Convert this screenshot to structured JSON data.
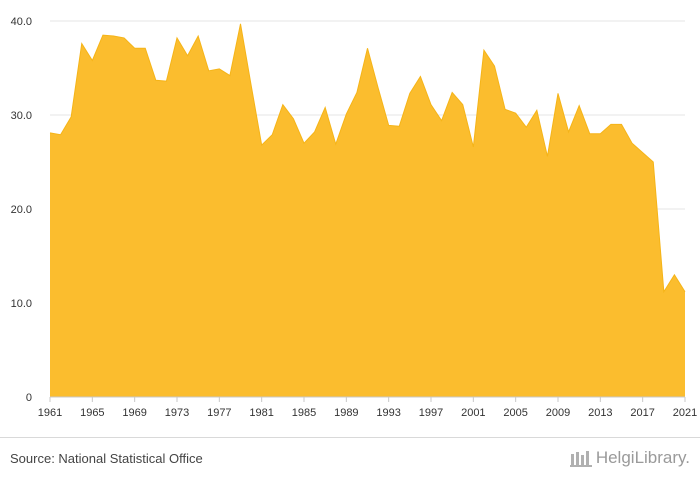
{
  "chart_data": {
    "type": "area",
    "x_start": 1961,
    "x_end": 2021,
    "x_tick_labels": [
      "1961",
      "1965",
      "1969",
      "1973",
      "1977",
      "1981",
      "1985",
      "1989",
      "1993",
      "1997",
      "2001",
      "2005",
      "2009",
      "2013",
      "2017",
      "2021"
    ],
    "y_tick_labels": [
      "0",
      "10.0",
      "20.0",
      "30.0",
      "40.0"
    ],
    "ylim": [
      0,
      40
    ],
    "grid": true,
    "legend": "none",
    "color": "#fbbd2e",
    "x": [
      1961,
      1962,
      1963,
      1964,
      1965,
      1966,
      1967,
      1968,
      1969,
      1970,
      1971,
      1972,
      1973,
      1974,
      1975,
      1976,
      1977,
      1978,
      1979,
      1980,
      1981,
      1982,
      1983,
      1984,
      1985,
      1986,
      1987,
      1988,
      1989,
      1990,
      1991,
      1992,
      1993,
      1994,
      1995,
      1996,
      1997,
      1998,
      1999,
      2000,
      2001,
      2002,
      2003,
      2004,
      2005,
      2006,
      2007,
      2008,
      2009,
      2010,
      2011,
      2012,
      2013,
      2014,
      2015,
      2016,
      2017,
      2018,
      2019,
      2020,
      2021
    ],
    "values": [
      28.1,
      27.9,
      29.8,
      37.6,
      35.8,
      38.5,
      38.4,
      38.2,
      37.1,
      37.1,
      33.7,
      33.6,
      38.2,
      36.3,
      38.4,
      34.7,
      34.9,
      34.2,
      39.7,
      33.2,
      26.8,
      27.9,
      31.1,
      29.6,
      27.0,
      28.2,
      30.8,
      26.9,
      30.1,
      32.4,
      37.1,
      32.9,
      28.9,
      28.8,
      32.3,
      34.1,
      31.1,
      29.4,
      32.4,
      31.1,
      26.6,
      36.9,
      35.2,
      30.6,
      30.2,
      28.7,
      30.5,
      25.6,
      32.3,
      28.2,
      31.0,
      28.0,
      28.0,
      29.0,
      29.0,
      27.0,
      26.0,
      25.0,
      11.2,
      13.0,
      11.2
    ]
  },
  "footer": {
    "source": "Source: National Statistical Office",
    "brand": "HelgiLibrary."
  }
}
